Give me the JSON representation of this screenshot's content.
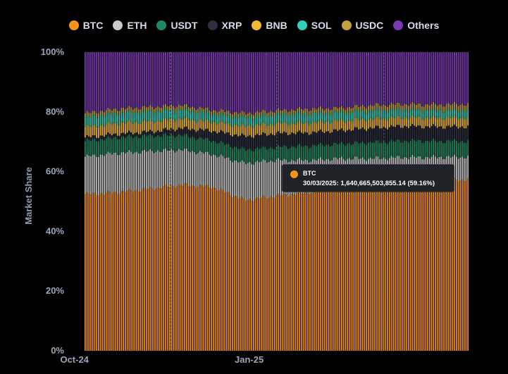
{
  "legend": [
    {
      "name": "BTC",
      "color": "#f7931a"
    },
    {
      "name": "ETH",
      "color": "#c9c9c9"
    },
    {
      "name": "USDT",
      "color": "#1a8b62"
    },
    {
      "name": "XRP",
      "color": "#2c2f3f"
    },
    {
      "name": "BNB",
      "color": "#f0b92d"
    },
    {
      "name": "SOL",
      "color": "#2fd0bb"
    },
    {
      "name": "USDC",
      "color": "#c2a23b"
    },
    {
      "name": "Others",
      "color": "#7b3ab4"
    }
  ],
  "tooltip": {
    "series": "BTC",
    "text": "30/03/2025: 1,640,665,503,855.14 (59.16%)",
    "color": "#f7931a"
  },
  "chart_data": {
    "type": "bar",
    "stacked": true,
    "ylabel": "Market Share",
    "ylim": [
      0,
      100
    ],
    "ytick_labels": [
      "0%",
      "20%",
      "40%",
      "60%",
      "80%",
      "100%"
    ],
    "xtick_labels": [
      "Oct-24",
      "Jan-25"
    ],
    "grid": false,
    "legend_position": "top",
    "date_range": [
      "2024-10-07",
      "2025-04-25"
    ],
    "series": [
      {
        "name": "BTC",
        "values": [
          52.3,
          53.0,
          54.2,
          55.5,
          54.8,
          50.4,
          51.8,
          53.0,
          56.0,
          55.6,
          55.9,
          56.8,
          57.3
        ]
      },
      {
        "name": "ETH",
        "values": [
          12.7,
          13.2,
          12.6,
          11.8,
          11.0,
          12.4,
          12.0,
          10.8,
          8.4,
          8.8,
          8.9,
          8.0,
          7.6
        ]
      },
      {
        "name": "USDT",
        "values": [
          5.2,
          5.2,
          5.2,
          4.9,
          4.6,
          4.5,
          4.4,
          4.8,
          4.9,
          5.4,
          5.5,
          5.4,
          5.3
        ]
      },
      {
        "name": "XRP",
        "values": [
          1.2,
          1.2,
          1.3,
          2.3,
          3.2,
          4.5,
          4.6,
          4.4,
          4.5,
          4.8,
          4.9,
          4.8,
          4.8
        ]
      },
      {
        "name": "BNB",
        "values": [
          3.5,
          3.6,
          3.5,
          3.2,
          3.1,
          3.4,
          3.3,
          3.3,
          3.2,
          3.0,
          3.0,
          3.0,
          3.1
        ]
      },
      {
        "name": "SOL",
        "values": [
          3.2,
          3.4,
          3.3,
          3.1,
          2.7,
          3.0,
          3.0,
          3.2,
          2.8,
          2.9,
          2.6,
          2.5,
          2.5
        ]
      },
      {
        "name": "USDC",
        "values": [
          1.4,
          1.4,
          1.5,
          1.4,
          1.2,
          1.3,
          1.3,
          1.5,
          1.5,
          1.7,
          1.8,
          1.9,
          2.0
        ]
      },
      {
        "name": "Others",
        "values": [
          20.5,
          19.0,
          18.4,
          17.8,
          19.4,
          20.5,
          19.6,
          19.0,
          18.7,
          17.8,
          17.4,
          17.6,
          17.4
        ]
      }
    ]
  }
}
